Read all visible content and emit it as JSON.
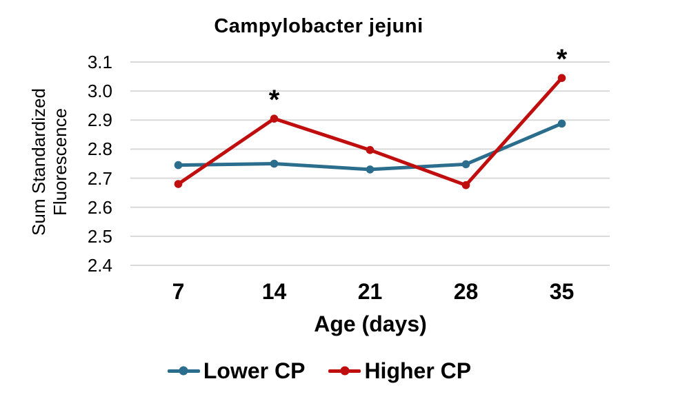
{
  "chart_data": {
    "type": "line",
    "title": "Campylobacter jejuni",
    "xlabel": "Age (days)",
    "ylabel": "Sum Standardized Fluorescence",
    "ylabel_lines": [
      "Sum Standardized",
      "Fluorescence"
    ],
    "categories": [
      "7",
      "14",
      "21",
      "28",
      "35"
    ],
    "series": [
      {
        "name": "Lower CP",
        "color": "#2b6d8d",
        "values": [
          2.745,
          2.75,
          2.73,
          2.748,
          2.888
        ]
      },
      {
        "name": "Higher CP",
        "color": "#c00d0d",
        "values": [
          2.68,
          2.905,
          2.797,
          2.676,
          3.045
        ]
      }
    ],
    "ylim": [
      2.4,
      3.1
    ],
    "ytick_step": 0.1,
    "ytick_labels": [
      "2.4",
      "2.5",
      "2.6",
      "2.7",
      "2.8",
      "2.9",
      "3.0",
      "3.1"
    ],
    "grid": "horizontal",
    "gridline_color": "#d9d9d9",
    "legend_position": "bottom",
    "marker": "circle",
    "annotations": [
      {
        "text": "*",
        "series": "Higher CP",
        "category": "14"
      },
      {
        "text": "*",
        "series": "Higher CP",
        "category": "35"
      }
    ]
  }
}
